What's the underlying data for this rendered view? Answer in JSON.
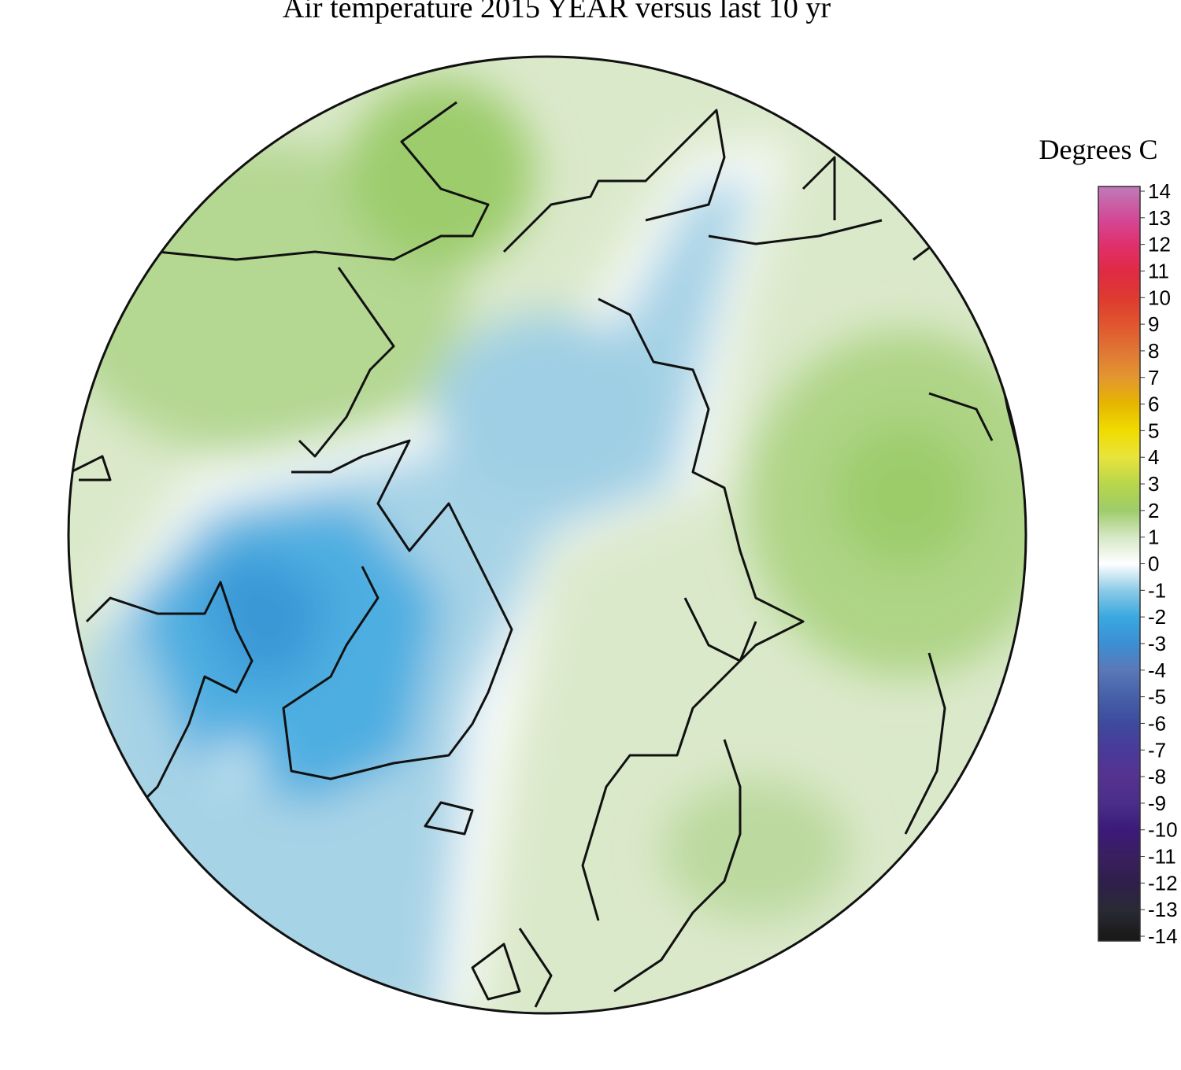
{
  "title": "Air temperature 2015 YEAR versus last 10 yr",
  "colorbar": {
    "label": "Degrees C",
    "range": [
      -14,
      14
    ],
    "ticks": [
      14,
      13,
      12,
      11,
      10,
      9,
      8,
      7,
      6,
      5,
      4,
      3,
      2,
      1,
      0,
      -1,
      -2,
      -3,
      -4,
      -5,
      -6,
      -7,
      -8,
      -9,
      -10,
      -11,
      -12,
      -13,
      -14
    ],
    "colors": [
      "#c274b4",
      "#d24a98",
      "#e0306e",
      "#e02a44",
      "#de3a30",
      "#e0552e",
      "#e07634",
      "#e39630",
      "#e6b600",
      "#f0dc00",
      "#e8e43c",
      "#b8d64a",
      "#9fcc6a",
      "#d6e8c6",
      "#ffffff",
      "#8ccbe6",
      "#3aa8e0",
      "#3b8fd4",
      "#5a78b8",
      "#4660a8",
      "#3e4a9e",
      "#4a3a9a",
      "#55338f",
      "#4a2e8a",
      "#3b1a7a",
      "#3a1f60",
      "#2e1f4a",
      "#2a2a35",
      "#1a1a1a"
    ]
  }
}
